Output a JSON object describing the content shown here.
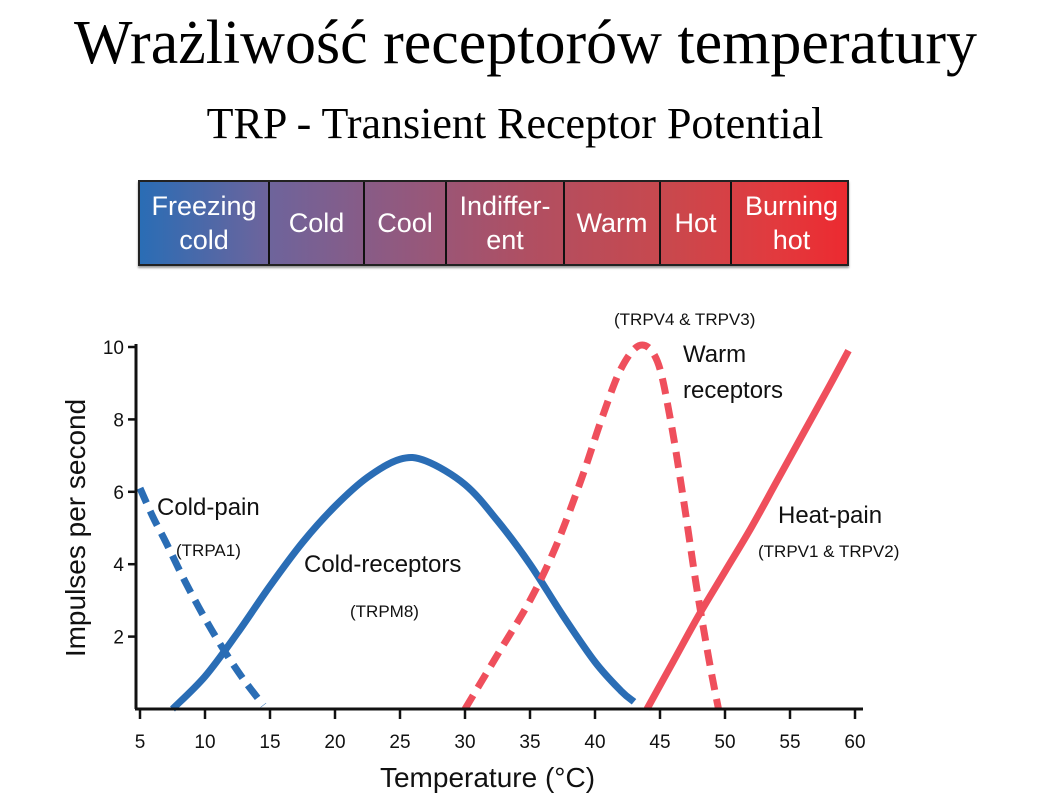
{
  "title": "Wrażliwość receptorów temperatury",
  "subtitle": "TRP - Transient Receptor Potential",
  "scale_bar": {
    "segments": [
      "Freezing\ncold",
      "Cold",
      "Cool",
      "Indiffer-\nent",
      "Warm",
      "Hot",
      "Burning\nhot"
    ],
    "colors": {
      "start": "#2a6db5",
      "end": "#ec2a30"
    }
  },
  "chart_data": {
    "type": "line",
    "xlabel": "Temperature (°C)",
    "ylabel": "Impulses per second",
    "xlim": [
      5,
      60
    ],
    "ylim": [
      0,
      10
    ],
    "xticks": [
      5,
      10,
      15,
      20,
      25,
      30,
      35,
      40,
      45,
      50,
      55,
      60
    ],
    "yticks": [
      2,
      4,
      6,
      8,
      10
    ],
    "grid": false,
    "series": [
      {
        "name": "Cold-pain",
        "sub": "(TRPA1)",
        "color": "#2a6db5",
        "dashed": true,
        "points": [
          [
            5,
            6.1
          ],
          [
            6,
            5.3
          ],
          [
            7,
            4.6
          ],
          [
            8.5,
            3.5
          ],
          [
            10,
            2.5
          ],
          [
            11.5,
            1.6
          ],
          [
            13,
            0.8
          ],
          [
            14.5,
            0.1
          ]
        ]
      },
      {
        "name": "Cold-receptors",
        "sub": "(TRPM8)",
        "color": "#2a6db5",
        "dashed": false,
        "points": [
          [
            7.5,
            0
          ],
          [
            10,
            0.9
          ],
          [
            12.5,
            2.1
          ],
          [
            15,
            3.4
          ],
          [
            17.5,
            4.6
          ],
          [
            20,
            5.6
          ],
          [
            22.5,
            6.4
          ],
          [
            25,
            6.9
          ],
          [
            27,
            6.85
          ],
          [
            30,
            6.2
          ],
          [
            32.5,
            5.2
          ],
          [
            35,
            4.0
          ],
          [
            37.5,
            2.6
          ],
          [
            40,
            1.3
          ],
          [
            42,
            0.5
          ],
          [
            43,
            0.2
          ]
        ]
      },
      {
        "name": "Warm\nreceptors",
        "sub": "(TRPV4 & TRPV3)",
        "color": "#ef4f5c",
        "dashed": true,
        "points": [
          [
            30,
            0
          ],
          [
            32.5,
            1.5
          ],
          [
            35,
            3.0
          ],
          [
            37,
            4.5
          ],
          [
            39,
            6.4
          ],
          [
            40.5,
            8.0
          ],
          [
            42,
            9.4
          ],
          [
            43.5,
            10.05
          ],
          [
            44.8,
            9.6
          ],
          [
            45.8,
            8.0
          ],
          [
            46.8,
            5.8
          ],
          [
            47.8,
            3.4
          ],
          [
            48.8,
            1.3
          ],
          [
            49.5,
            0
          ]
        ]
      },
      {
        "name": "Heat-pain",
        "sub": "(TRPV1 & TRPV2)",
        "color": "#ef4f5c",
        "dashed": false,
        "points": [
          [
            44,
            0
          ],
          [
            46,
            1.3
          ],
          [
            48,
            2.6
          ],
          [
            50,
            3.8
          ],
          [
            52,
            5.0
          ],
          [
            54,
            6.3
          ],
          [
            56,
            7.6
          ],
          [
            58,
            8.9
          ],
          [
            59.5,
            9.9
          ]
        ]
      }
    ]
  }
}
